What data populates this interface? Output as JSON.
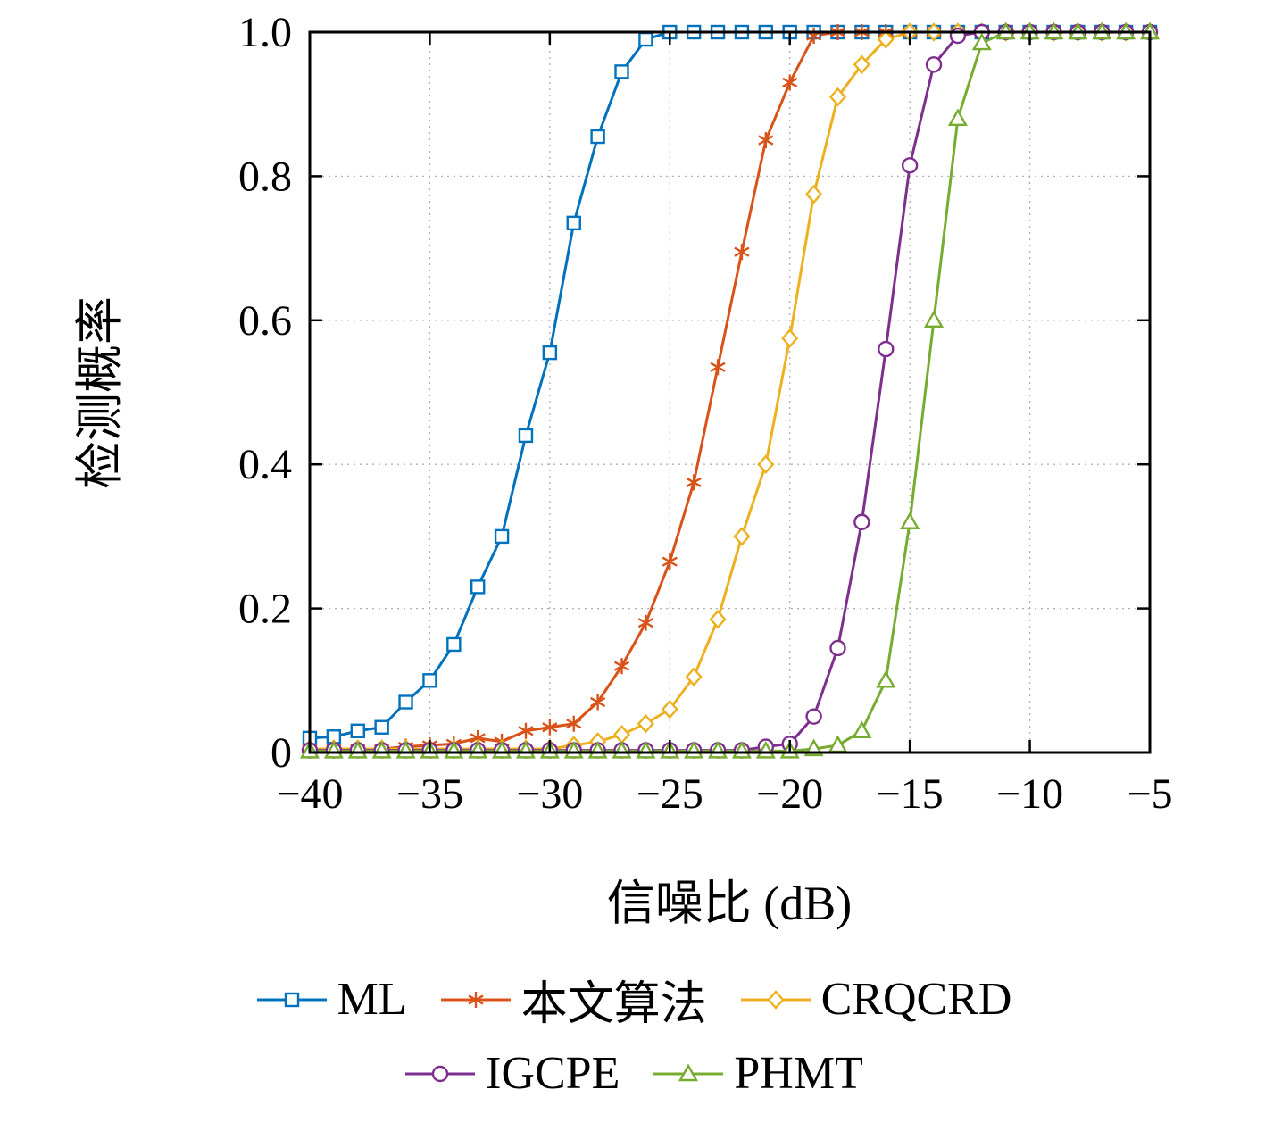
{
  "figure": {
    "background": "#ffffff",
    "border_color": "#000000",
    "grid_color": "#b0b0b0"
  },
  "chart_data": {
    "type": "line",
    "title": "",
    "xlabel": "信噪比 (dB)",
    "ylabel": "检测概率",
    "xlim": [
      -40,
      -5
    ],
    "ylim": [
      0,
      1
    ],
    "x_ticks": [
      -40,
      -35,
      -30,
      -25,
      -20,
      -15,
      -10,
      -5
    ],
    "y_ticks": [
      0,
      0.2,
      0.4,
      0.6,
      0.8,
      1.0
    ],
    "grid": true,
    "legend_position": "below",
    "x": [
      -40,
      -39,
      -38,
      -37,
      -36,
      -35,
      -34,
      -33,
      -32,
      -31,
      -30,
      -29,
      -28,
      -27,
      -26,
      -25,
      -24,
      -23,
      -22,
      -21,
      -20,
      -19,
      -18,
      -17,
      -16,
      -15,
      -14,
      -13,
      -12,
      -11,
      -10,
      -9,
      -8,
      -7,
      -6,
      -5
    ],
    "series": [
      {
        "name": "ML",
        "color": "#0072BD",
        "marker": "square",
        "values": [
          0.02,
          0.022,
          0.03,
          0.035,
          0.07,
          0.1,
          0.15,
          0.23,
          0.3,
          0.44,
          0.555,
          0.735,
          0.855,
          0.945,
          0.99,
          1,
          1,
          1,
          1,
          1,
          1,
          1,
          1,
          1,
          1,
          1,
          1,
          1,
          1,
          1,
          1,
          1,
          1,
          1,
          1,
          1
        ]
      },
      {
        "name": "本文算法",
        "color": "#D95319",
        "marker": "asterisk",
        "values": [
          0.005,
          0.005,
          0.005,
          0.005,
          0.008,
          0.01,
          0.012,
          0.02,
          0.015,
          0.03,
          0.035,
          0.04,
          0.07,
          0.12,
          0.18,
          0.265,
          0.375,
          0.535,
          0.695,
          0.85,
          0.93,
          0.995,
          1,
          1,
          1,
          1,
          1,
          1,
          1,
          1,
          1,
          1,
          1,
          1,
          1,
          1
        ]
      },
      {
        "name": "CRQCRD",
        "color": "#EDB120",
        "marker": "diamond",
        "values": [
          0.005,
          0.005,
          0.005,
          0.005,
          0.005,
          0.005,
          0.005,
          0.005,
          0.005,
          0.005,
          0.005,
          0.01,
          0.015,
          0.025,
          0.04,
          0.06,
          0.105,
          0.185,
          0.3,
          0.4,
          0.575,
          0.775,
          0.91,
          0.955,
          0.99,
          1,
          1,
          1,
          1,
          1,
          1,
          1,
          1,
          1,
          1,
          1
        ]
      },
      {
        "name": "IGCPE",
        "color": "#7E2F8E",
        "marker": "circle",
        "values": [
          0.003,
          0.003,
          0.003,
          0.003,
          0.003,
          0.003,
          0.003,
          0.003,
          0.003,
          0.003,
          0.003,
          0.003,
          0.003,
          0.003,
          0.003,
          0.003,
          0.003,
          0.003,
          0.003,
          0.008,
          0.012,
          0.05,
          0.145,
          0.32,
          0.56,
          0.815,
          0.955,
          0.995,
          1,
          1,
          1,
          1,
          1,
          1,
          1,
          1
        ]
      },
      {
        "name": "PHMT",
        "color": "#77AC30",
        "marker": "triangle",
        "values": [
          0.002,
          0.002,
          0.002,
          0.002,
          0.002,
          0.002,
          0.002,
          0.002,
          0.002,
          0.002,
          0.002,
          0.002,
          0.002,
          0.002,
          0.002,
          0.002,
          0.002,
          0.002,
          0.002,
          0.002,
          0.002,
          0.005,
          0.01,
          0.03,
          0.1,
          0.32,
          0.6,
          0.88,
          0.985,
          1,
          1,
          1,
          1,
          1,
          1,
          1
        ]
      }
    ]
  }
}
